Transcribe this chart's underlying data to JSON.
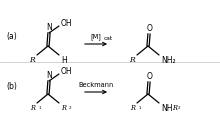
{
  "background": "#ffffff",
  "panel_a_label": "(a)",
  "panel_b_label": "(b)",
  "reaction_a_reagent": "[M]",
  "reaction_a_reagent_sub": "cat",
  "reaction_b_reagent": "Beckmann",
  "fig_width": 2.2,
  "fig_height": 1.24,
  "dpi": 100
}
